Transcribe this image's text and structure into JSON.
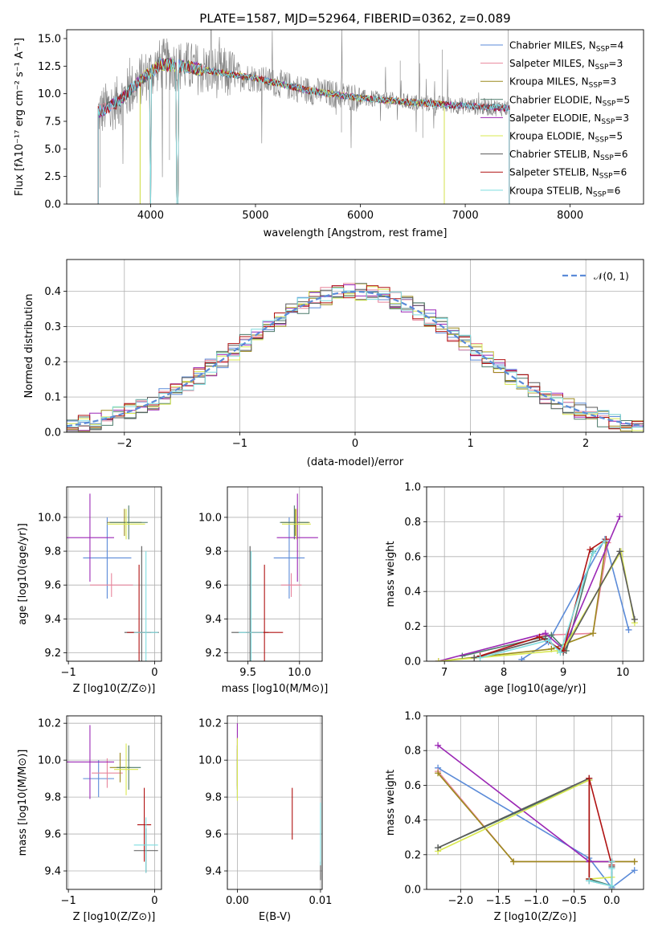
{
  "colors": [
    "#5b8bd8",
    "#e8859c",
    "#9c8a1e",
    "#4d7a6a",
    "#9b27b5",
    "#d9e84f",
    "#5a5a5a",
    "#b01212",
    "#7fdde0"
  ],
  "chart_data": [
    {
      "id": "spectrum",
      "type": "line",
      "title": "PLATE=1587, MJD=52964, FIBERID=0362, z=0.089",
      "xlabel": "wavelength [Angstrom, rest frame]",
      "ylabel": "Flux [fλ10⁻¹⁷ erg cm⁻² s⁻¹ A⁻¹]",
      "xlim": [
        3200,
        8700
      ],
      "ylim": [
        0,
        15.8
      ],
      "xticks": [
        "4000",
        "5000",
        "6000",
        "7000",
        "8000"
      ],
      "yticks": [
        "0.0",
        "2.5",
        "5.0",
        "7.5",
        "10.0",
        "12.5",
        "15.0"
      ],
      "legend": [
        "Chabrier MILES, N_SSP=4",
        "Salpeter MILES, N_SSP=3",
        "Kroupa MILES, N_SSP=3",
        "Chabrier ELODIE, N_SSP=5",
        "Salpeter ELODIE, N_SSP=3",
        "Kroupa ELODIE, N_SSP=5",
        "Chabrier STELIB, N_SSP=6",
        "Salpeter STELIB, N_SSP=6",
        "Kroupa STELIB, N_SSP=6"
      ],
      "model_trend": {
        "x": [
          3500,
          3700,
          3900,
          4100,
          4300,
          4600,
          5000,
          5500,
          6000,
          6500,
          7000,
          7400
        ],
        "y": [
          8.3,
          9.3,
          11.2,
          12.7,
          12.5,
          12.0,
          11.4,
          10.3,
          9.6,
          9.2,
          8.9,
          8.7
        ]
      }
    },
    {
      "id": "residuals",
      "type": "line",
      "xlabel": "(data-model)/error",
      "ylabel": "Normed distribution",
      "xlim": [
        -2.5,
        2.5
      ],
      "ylim": [
        0,
        0.49
      ],
      "xticks": [
        "−2",
        "−1",
        "0",
        "1",
        "2"
      ],
      "yticks": [
        "0.0",
        "0.1",
        "0.2",
        "0.3",
        "0.4"
      ],
      "legend": [
        "𝒩(0, 1)"
      ],
      "reference_gaussian": {
        "mean": 0,
        "sigma": 1
      }
    },
    {
      "id": "age_vs_Z",
      "type": "scatter",
      "xlabel": "Z [log10(Z/Z⊙)]",
      "ylabel": "age  [log10(age/yr)]",
      "xlim": [
        -1.02,
        0.08
      ],
      "ylim": [
        9.15,
        10.18
      ],
      "xticks": [
        "−1",
        "0"
      ],
      "yticks": [
        "9.2",
        "9.4",
        "9.6",
        "9.8",
        "10.0"
      ],
      "points": [
        {
          "x": -0.55,
          "y": 9.76,
          "ex": 0.28,
          "ey": 0.24
        },
        {
          "x": -0.5,
          "y": 9.6,
          "ex": 0.25,
          "ey": 0.07
        },
        {
          "x": -0.35,
          "y": 9.97,
          "ex": 0.2,
          "ey": 0.08
        },
        {
          "x": -0.3,
          "y": 9.97,
          "ex": 0.22,
          "ey": 0.1
        },
        {
          "x": -0.75,
          "y": 9.88,
          "ex": 0.28,
          "ey": 0.26
        },
        {
          "x": -0.33,
          "y": 9.96,
          "ex": 0.22,
          "ey": 0.09
        },
        {
          "x": -0.15,
          "y": 9.32,
          "ex": 0.2,
          "ey": 0.51
        },
        {
          "x": -0.18,
          "y": 9.32,
          "ex": 0.14,
          "ey": 0.4
        },
        {
          "x": -0.1,
          "y": 9.32,
          "ex": 0.14,
          "ey": 0.48
        }
      ]
    },
    {
      "id": "age_vs_mass",
      "type": "scatter",
      "xlabel": "mass [log10(M/M⊙)]",
      "ylabel": "",
      "xlim": [
        9.3,
        10.22
      ],
      "ylim": [
        9.15,
        10.18
      ],
      "xticks": [
        "9.5",
        "10.0"
      ],
      "yticks": [
        "9.2",
        "9.4",
        "9.6",
        "9.8",
        "10.0"
      ],
      "points": [
        {
          "x": 9.9,
          "y": 9.76,
          "ex": 0.15,
          "ey": 0.24
        },
        {
          "x": 9.92,
          "y": 9.6,
          "ex": 0.1,
          "ey": 0.07
        },
        {
          "x": 9.96,
          "y": 9.97,
          "ex": 0.14,
          "ey": 0.08
        },
        {
          "x": 9.95,
          "y": 9.97,
          "ex": 0.14,
          "ey": 0.1
        },
        {
          "x": 9.98,
          "y": 9.88,
          "ex": 0.2,
          "ey": 0.26
        },
        {
          "x": 9.97,
          "y": 9.96,
          "ex": 0.14,
          "ey": 0.09
        },
        {
          "x": 9.52,
          "y": 9.32,
          "ex": 0.18,
          "ey": 0.51
        },
        {
          "x": 9.66,
          "y": 9.32,
          "ex": 0.18,
          "ey": 0.4
        },
        {
          "x": 9.53,
          "y": 9.32,
          "ex": 0.12,
          "ey": 0.48
        }
      ]
    },
    {
      "id": "weight_vs_age",
      "type": "line",
      "xlabel": "age  [log10(age/yr)]",
      "ylabel": "mass weight",
      "xlim": [
        6.7,
        10.35
      ],
      "ylim": [
        0,
        1.0
      ],
      "xticks": [
        "7",
        "8",
        "9",
        "10"
      ],
      "yticks": [
        "0.0",
        "0.2",
        "0.4",
        "0.6",
        "0.8",
        "1.0"
      ],
      "series": [
        {
          "x": [
            8.3,
            8.75,
            9.7,
            10.1
          ],
          "y": [
            0.01,
            0.11,
            0.7,
            0.18
          ]
        },
        {
          "x": [
            7.5,
            8.7,
            9.5,
            9.75
          ],
          "y": [
            0.02,
            0.15,
            0.16,
            0.68
          ]
        },
        {
          "x": [
            6.9,
            8.8,
            9.5,
            9.72
          ],
          "y": [
            0.0,
            0.07,
            0.16,
            0.68
          ]
        },
        {
          "x": [
            7.3,
            8.8,
            9.05,
            9.5
          ],
          "y": [
            0.03,
            0.15,
            0.06,
            0.63
          ]
        },
        {
          "x": [
            6.9,
            8.7,
            9.0,
            9.95
          ],
          "y": [
            0.0,
            0.16,
            0.07,
            0.83
          ]
        },
        {
          "x": [
            6.9,
            8.9,
            9.0,
            9.97,
            10.2
          ],
          "y": [
            0.0,
            0.06,
            0.07,
            0.63,
            0.22
          ]
        },
        {
          "x": [
            7.5,
            8.7,
            9.0,
            9.95,
            10.2
          ],
          "y": [
            0.02,
            0.13,
            0.05,
            0.63,
            0.24
          ]
        },
        {
          "x": [
            7.6,
            8.6,
            9.0,
            9.45,
            9.72
          ],
          "y": [
            0.03,
            0.14,
            0.06,
            0.64,
            0.7
          ]
        },
        {
          "x": [
            7.6,
            8.75,
            8.95,
            9.5,
            9.7
          ],
          "y": [
            0.02,
            0.12,
            0.05,
            0.62,
            0.69
          ]
        }
      ]
    },
    {
      "id": "mass_vs_Z",
      "type": "scatter",
      "xlabel": "Z [log10(Z/Z⊙)]",
      "ylabel": "mass [log10(M/M⊙)]",
      "xlim": [
        -1.02,
        0.08
      ],
      "ylim": [
        9.3,
        10.24
      ],
      "xticks": [
        "−1",
        "0"
      ],
      "yticks": [
        "9.4",
        "9.6",
        "9.8",
        "10.0",
        "10.2"
      ],
      "points": [
        {
          "x": -0.65,
          "y": 9.9,
          "ex": 0.18,
          "ey": 0.1
        },
        {
          "x": -0.55,
          "y": 9.93,
          "ex": 0.18,
          "ey": 0.08
        },
        {
          "x": -0.4,
          "y": 9.96,
          "ex": 0.12,
          "ey": 0.08
        },
        {
          "x": -0.3,
          "y": 9.96,
          "ex": 0.14,
          "ey": 0.12
        },
        {
          "x": -0.75,
          "y": 9.99,
          "ex": 0.28,
          "ey": 0.2
        },
        {
          "x": -0.33,
          "y": 9.95,
          "ex": 0.14,
          "ey": 0.14
        },
        {
          "x": -0.1,
          "y": 9.51,
          "ex": 0.14,
          "ey": 0.12
        },
        {
          "x": -0.12,
          "y": 9.65,
          "ex": 0.08,
          "ey": 0.2
        },
        {
          "x": -0.1,
          "y": 9.54,
          "ex": 0.14,
          "ey": 0.15
        }
      ]
    },
    {
      "id": "mass_vs_ebv",
      "type": "scatter",
      "xlabel": "E(B-V)",
      "ylabel": "",
      "xlim": [
        -0.0012,
        0.0102
      ],
      "ylim": [
        9.3,
        10.24
      ],
      "xticks": [
        "0.00",
        "0.01"
      ],
      "yticks": [
        "9.4",
        "9.6",
        "9.8",
        "10.0",
        "10.2"
      ],
      "points": [
        {
          "x": 0.0,
          "y": 9.9,
          "ex": 0,
          "ey": 0.1
        },
        {
          "x": 0.0,
          "y": 9.93,
          "ex": 0,
          "ey": 0.08
        },
        {
          "x": 0.0,
          "y": 9.96,
          "ex": 0,
          "ey": 0.1
        },
        {
          "x": 0.0,
          "y": 9.96,
          "ex": 0,
          "ey": 0.12
        },
        {
          "x": 0.0,
          "y": 10.1,
          "ex": 0,
          "ey": 0.1
        },
        {
          "x": 0.0,
          "y": 9.95,
          "ex": 0,
          "ey": 0.17
        },
        {
          "x": 0.01,
          "y": 9.4,
          "ex": 0,
          "ey": 0.05
        },
        {
          "x": 0.0066,
          "y": 9.71,
          "ex": 0,
          "ey": 0.14
        },
        {
          "x": 0.01,
          "y": 9.6,
          "ex": 0,
          "ey": 0.17
        }
      ]
    },
    {
      "id": "weight_vs_Z",
      "type": "line",
      "xlabel": "Z [log10(Z/Z⊙)]",
      "ylabel": "mass weight",
      "xlim": [
        -2.45,
        0.42
      ],
      "ylim": [
        0,
        1.0
      ],
      "xticks": [
        "−2.0",
        "−1.5",
        "−1.0",
        "−0.5",
        "0.0"
      ],
      "yticks": [
        "0.0",
        "0.2",
        "0.4",
        "0.6",
        "0.8",
        "1.0"
      ],
      "series": [
        {
          "x": [
            -2.3,
            -0.3,
            0.0,
            0.3
          ],
          "y": [
            0.7,
            0.18,
            0.01,
            0.11
          ]
        },
        {
          "x": [
            -2.3,
            -1.3,
            -0.3,
            0.0,
            0.3
          ],
          "y": [
            0.68,
            0.16,
            0.16,
            0.16,
            0.16
          ]
        },
        {
          "x": [
            -2.3,
            -1.3,
            -0.3,
            0.0,
            0.3
          ],
          "y": [
            0.67,
            0.16,
            0.16,
            0.16,
            0.16
          ]
        },
        {
          "x": [
            -2.3,
            -0.3,
            -0.3,
            0.0,
            0.0
          ],
          "y": [
            0.24,
            0.63,
            0.06,
            0.02,
            0.16
          ]
        },
        {
          "x": [
            -2.3,
            -0.3,
            0.0,
            0.0
          ],
          "y": [
            0.83,
            0.16,
            0.16,
            0.0
          ]
        },
        {
          "x": [
            -2.3,
            -0.3,
            -0.3,
            0.0,
            0.0
          ],
          "y": [
            0.22,
            0.63,
            0.06,
            0.07,
            0.0
          ]
        },
        {
          "x": [
            -2.3,
            -0.3,
            -0.3,
            0.0,
            0.0
          ],
          "y": [
            0.24,
            0.64,
            0.05,
            0.02,
            0.13
          ]
        },
        {
          "x": [
            -0.3,
            -0.3,
            0.0,
            0.0
          ],
          "y": [
            0.06,
            0.64,
            0.14,
            0.16
          ]
        },
        {
          "x": [
            -0.3,
            0.0,
            0.0,
            0.0
          ],
          "y": [
            0.05,
            0.02,
            0.12,
            0.16
          ]
        }
      ]
    }
  ]
}
